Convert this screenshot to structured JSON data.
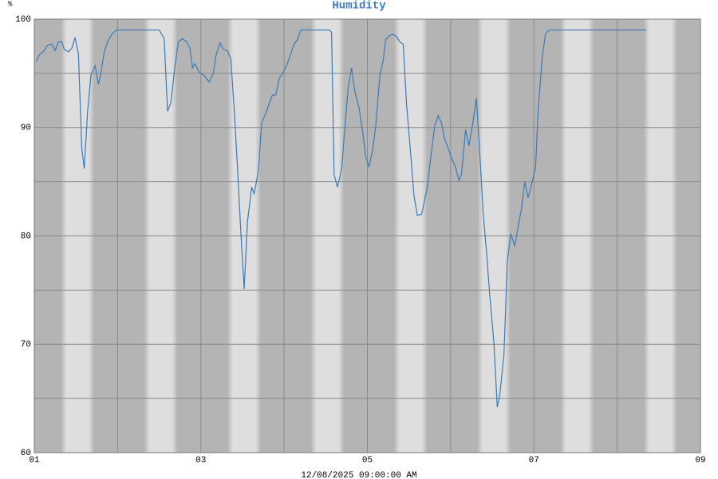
{
  "chart_data": {
    "type": "line",
    "title": "Humidity",
    "y_label": "%",
    "x_label": "12/08/2025 09:00:00 AM",
    "xlim": [
      1,
      9
    ],
    "xticks": [
      {
        "value": 1,
        "label": "01"
      },
      {
        "value": 3,
        "label": "03"
      },
      {
        "value": 5,
        "label": "05"
      },
      {
        "value": 7,
        "label": "07"
      },
      {
        "value": 9,
        "label": "09"
      }
    ],
    "x_minor_grid": [
      2,
      4,
      6,
      8
    ],
    "ylim": [
      60,
      100
    ],
    "yticks": [
      60,
      70,
      80,
      90,
      100
    ],
    "y_minor_grid": [
      65,
      75,
      85,
      95
    ],
    "grid": true,
    "series": [
      {
        "name": "Humidity",
        "color": "#3a7ab8",
        "x": [
          1.02,
          1.07,
          1.11,
          1.16,
          1.21,
          1.25,
          1.29,
          1.33,
          1.36,
          1.41,
          1.45,
          1.49,
          1.53,
          1.57,
          1.6,
          1.64,
          1.68,
          1.73,
          1.77,
          1.8,
          1.84,
          1.89,
          1.94,
          1.99,
          2.5,
          2.56,
          2.6,
          2.64,
          2.69,
          2.73,
          2.78,
          2.83,
          2.87,
          2.9,
          2.93,
          2.98,
          3.04,
          3.1,
          3.15,
          3.18,
          3.23,
          3.27,
          3.32,
          3.36,
          3.4,
          3.44,
          3.48,
          3.52,
          3.56,
          3.61,
          3.64,
          3.69,
          3.73,
          3.78,
          3.82,
          3.86,
          3.9,
          3.94,
          3.99,
          4.04,
          4.08,
          4.12,
          4.16,
          4.2,
          4.54,
          4.57,
          4.6,
          4.64,
          4.69,
          4.73,
          4.77,
          4.81,
          4.85,
          4.9,
          4.94,
          4.98,
          5.02,
          5.06,
          5.1,
          5.15,
          5.19,
          5.22,
          5.27,
          5.31,
          5.35,
          5.39,
          5.43,
          5.47,
          5.51,
          5.56,
          5.6,
          5.65,
          5.68,
          5.72,
          5.77,
          5.81,
          5.85,
          5.89,
          5.93,
          5.97,
          6.01,
          6.06,
          6.1,
          6.13,
          6.18,
          6.22,
          6.27,
          6.31,
          6.34,
          6.39,
          6.43,
          6.47,
          6.52,
          6.56,
          6.59,
          6.64,
          6.68,
          6.72,
          6.77,
          6.8,
          6.85,
          6.89,
          6.93,
          6.98,
          7.02,
          7.05,
          7.1,
          7.14,
          7.19,
          8.35
        ],
        "values": [
          96.1,
          96.8,
          97.0,
          97.6,
          97.7,
          97.1,
          97.9,
          97.9,
          97.2,
          97.0,
          97.3,
          98.3,
          96.8,
          88.1,
          86.2,
          91.5,
          94.8,
          95.7,
          94.0,
          95.0,
          97.0,
          98.1,
          98.7,
          99.0,
          99.0,
          98.2,
          91.5,
          92.3,
          95.7,
          97.9,
          98.2,
          97.9,
          97.3,
          95.5,
          95.9,
          95.1,
          94.8,
          94.2,
          95.0,
          96.6,
          97.8,
          97.2,
          97.1,
          96.3,
          91.8,
          86.3,
          80.4,
          75.1,
          81.3,
          84.5,
          83.9,
          85.9,
          90.4,
          91.3,
          92.2,
          93.0,
          93.0,
          94.5,
          95.1,
          95.9,
          96.8,
          97.7,
          98.1,
          99.0,
          99.0,
          98.8,
          85.7,
          84.5,
          86.1,
          90.0,
          93.7,
          95.5,
          93.3,
          91.8,
          89.8,
          87.3,
          86.4,
          87.8,
          90.1,
          94.8,
          96.2,
          98.1,
          98.5,
          98.6,
          98.4,
          97.9,
          97.7,
          92.2,
          88.5,
          83.7,
          81.9,
          82.0,
          83.0,
          84.5,
          87.8,
          90.2,
          91.1,
          90.4,
          88.9,
          88.1,
          87.2,
          86.3,
          85.1,
          85.7,
          89.8,
          88.3,
          90.6,
          92.7,
          88.9,
          82.2,
          78.6,
          74.5,
          70.1,
          64.2,
          65.3,
          69.0,
          77.5,
          80.2,
          79.1,
          80.4,
          82.5,
          85.0,
          83.5,
          85.0,
          86.3,
          91.5,
          96.5,
          98.7,
          99.0,
          99.0
        ]
      }
    ]
  }
}
